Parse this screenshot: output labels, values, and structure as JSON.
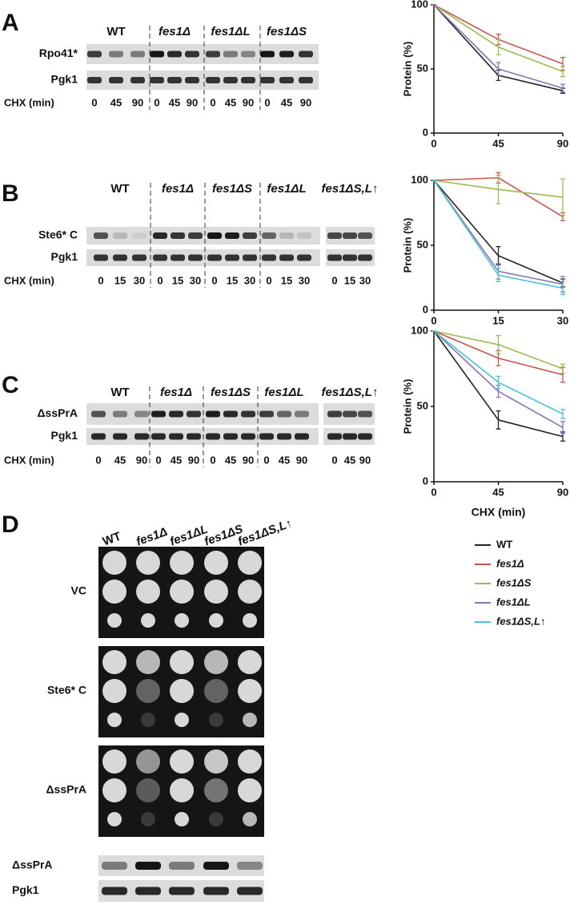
{
  "panel_labels": [
    "A",
    "B",
    "C",
    "D"
  ],
  "blots": [
    {
      "groups": [
        "WT",
        "fes1Δ",
        "fes1ΔL",
        "fes1ΔS"
      ],
      "rows": [
        "Rpo41*",
        "Pgk1"
      ],
      "time_label": "CHX (min)",
      "times": [
        "0",
        "45",
        "90"
      ]
    },
    {
      "groups": [
        "WT",
        "fes1Δ",
        "fes1ΔS",
        "fes1ΔL",
        "fes1ΔS,L↑"
      ],
      "rows": [
        "Ste6* C",
        "Pgk1"
      ],
      "time_label": "CHX (min)",
      "times": [
        "0",
        "15",
        "30"
      ]
    },
    {
      "groups": [
        "WT",
        "fes1Δ",
        "fes1ΔS",
        "fes1ΔL",
        "fes1ΔS,L↑"
      ],
      "rows": [
        "ΔssPrA",
        "Pgk1"
      ],
      "time_label": "CHX (min)",
      "times": [
        "0",
        "45",
        "90"
      ]
    }
  ],
  "panel_d": {
    "strains": [
      "WT",
      "fes1Δ",
      "fes1ΔL",
      "fes1ΔS",
      "fes1ΔS,L↑"
    ],
    "plates": [
      "VC",
      "Ste6* C",
      "ΔssPrA"
    ],
    "blot_rows": [
      "ΔssPrA",
      "Pgk1"
    ]
  },
  "chart_data": [
    {
      "type": "line",
      "y_label": "Protein (%)",
      "x": [
        0,
        45,
        90
      ],
      "xlim": [
        0,
        90
      ],
      "xticks": [
        0,
        45,
        90
      ],
      "ylim": [
        0,
        100
      ],
      "yticks": [
        0,
        50,
        100
      ],
      "series": [
        {
          "name": "WT",
          "color": "#222222",
          "values": [
            100,
            45,
            33
          ],
          "errors": [
            0,
            4,
            2
          ]
        },
        {
          "name": "fes1Δ",
          "color": "#c9534f",
          "values": [
            100,
            73,
            54
          ],
          "errors": [
            0,
            4,
            5
          ]
        },
        {
          "name": "fes1ΔS",
          "color": "#9bbb4d",
          "values": [
            100,
            67,
            48
          ],
          "errors": [
            0,
            6,
            4
          ]
        },
        {
          "name": "fes1ΔL",
          "color": "#8a73b3",
          "values": [
            100,
            50,
            35
          ],
          "errors": [
            0,
            5,
            3
          ]
        }
      ]
    },
    {
      "type": "line",
      "y_label": "Protein (%)",
      "x": [
        0,
        15,
        30
      ],
      "xlim": [
        0,
        30
      ],
      "xticks": [
        0,
        15,
        30
      ],
      "ylim": [
        0,
        100
      ],
      "yticks": [
        0,
        50,
        100
      ],
      "series": [
        {
          "name": "WT",
          "color": "#222222",
          "values": [
            100,
            42,
            21
          ],
          "errors": [
            0,
            7,
            3
          ]
        },
        {
          "name": "fes1Δ",
          "color": "#c9534f",
          "values": [
            100,
            102,
            72
          ],
          "errors": [
            0,
            4,
            3
          ]
        },
        {
          "name": "fes1ΔS",
          "color": "#9bbb4d",
          "values": [
            100,
            93,
            87
          ],
          "errors": [
            0,
            11,
            14
          ]
        },
        {
          "name": "fes1ΔL",
          "color": "#8a73b3",
          "values": [
            100,
            30,
            20
          ],
          "errors": [
            0,
            6,
            6
          ]
        },
        {
          "name": "fes1ΔS,L↑",
          "color": "#4bc4d8",
          "values": [
            100,
            27,
            17
          ],
          "errors": [
            0,
            5,
            5
          ]
        }
      ]
    },
    {
      "type": "line",
      "y_label": "Protein (%)",
      "x_label": "CHX (min)",
      "x": [
        0,
        45,
        90
      ],
      "xlim": [
        0,
        90
      ],
      "xticks": [
        0,
        45,
        90
      ],
      "ylim": [
        0,
        100
      ],
      "yticks": [
        0,
        50,
        100
      ],
      "series": [
        {
          "name": "WT",
          "color": "#222222",
          "values": [
            100,
            41,
            30
          ],
          "errors": [
            0,
            6,
            3
          ]
        },
        {
          "name": "fes1Δ",
          "color": "#c9534f",
          "values": [
            100,
            82,
            71
          ],
          "errors": [
            0,
            5,
            5
          ]
        },
        {
          "name": "fes1ΔS",
          "color": "#9bbb4d",
          "values": [
            100,
            91,
            75
          ],
          "errors": [
            0,
            6,
            3
          ]
        },
        {
          "name": "fes1ΔL",
          "color": "#8a73b3",
          "values": [
            100,
            60,
            36
          ],
          "errors": [
            0,
            4,
            4
          ]
        },
        {
          "name": "fes1ΔS,L↑",
          "color": "#4bc4d8",
          "values": [
            100,
            66,
            45
          ],
          "errors": [
            0,
            4,
            3
          ]
        }
      ]
    }
  ]
}
